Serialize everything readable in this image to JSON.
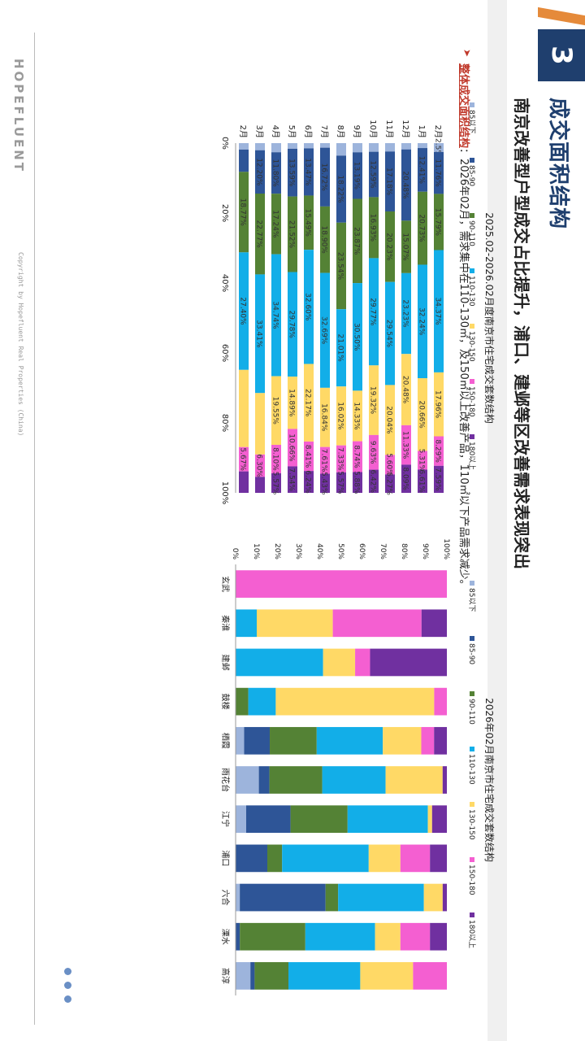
{
  "section": {
    "number": "3"
  },
  "header": {
    "title": "成交面积结构",
    "subtitle": "南京改善型户型成交占比提升，浦口、建邺等区改善需求表现突出"
  },
  "summary": {
    "lead": "整体成交面积结构",
    "text": "：2026年02月，需求集中在110-130㎡，及150㎡以上改善产品，110㎡以下产品需求减少。"
  },
  "footer": {
    "brand": "HOPEFLUENT",
    "copyright": "Copyright by Hopefluent Real Properties (China)"
  },
  "colors": {
    "s85": "#9db4dc",
    "s85_90": "#2e5597",
    "s90_110": "#548235",
    "s110_130": "#12aee8",
    "s130_150": "#ffd966",
    "s150_180": "#f45fd1",
    "s180": "#7030a0"
  },
  "chart_data": [
    {
      "type": "bar",
      "title": "2025.02-2026.02月度南京市住宅成交套数结构",
      "categories": [
        "2月",
        "3月",
        "4月",
        "5月",
        "6月",
        "7月",
        "8月",
        "9月",
        "10月",
        "11月",
        "12月",
        "1月",
        "2月"
      ],
      "legend": [
        "85以下",
        "85-90",
        "90-110",
        "110-130",
        "130-150",
        "150-180",
        "180以上"
      ],
      "y_ticks": [
        "0%",
        "20%",
        "40%",
        "60%",
        "80%",
        "100%"
      ],
      "series": [
        {
          "name": "85以下",
          "values": [
            1.5,
            2.0,
            2.6,
            1.6,
            1.5,
            1.3,
            3.4,
            2.6,
            2.4,
            2.4,
            1.8,
            1.4,
            2.5
          ]
        },
        {
          "name": "85-90",
          "values": [
            5.2,
            12.2,
            11.8,
            13.59,
            13.47,
            16.72,
            18.22,
            13.19,
            12.59,
            17.18,
            20.48,
            12.41,
            11.76
          ]
        },
        {
          "name": "90-110",
          "values": [
            18.77,
            22.77,
            17.24,
            21.52,
            15.49,
            18.9,
            23.54,
            23.87,
            16.93,
            20.23,
            15.07,
            20.73,
            15.79
          ]
        },
        {
          "name": "110-130",
          "values": [
            27.4,
            33.41,
            34.74,
            29.78,
            32.6,
            32.69,
            21.01,
            30.5,
            29.77,
            29.54,
            23.23,
            32.24,
            34.37
          ]
        },
        {
          "name": "130-150",
          "values": [
            18.0,
            17.3,
            19.55,
            14.89,
            22.17,
            16.84,
            16.02,
            14.33,
            19.32,
            20.04,
            20.48,
            20.66,
            17.96
          ]
        },
        {
          "name": "150-180",
          "values": [
            5.67,
            6.3,
            8.1,
            10.66,
            8.41,
            7.61,
            7.33,
            8.74,
            9.63,
            5.6,
            11.33,
            5.31,
            8.29
          ]
        },
        {
          "name": "180以上",
          "values": [
            5.0,
            4.5,
            5.57,
            7.54,
            6.24,
            5.43,
            5.57,
            5.88,
            6.42,
            5.27,
            8.09,
            6.61,
            7.59
          ]
        }
      ],
      "data_labels": [
        [
          "",
          "",
          "18.77%",
          "27.40%",
          "",
          "5.67%",
          ""
        ],
        [
          "",
          "12.20%",
          "22.77%",
          "33.41%",
          "",
          "6.30%",
          ""
        ],
        [
          "",
          "11.80%",
          "17.24%",
          "34.74%",
          "19.55%",
          "8.10%",
          "5.57%"
        ],
        [
          "",
          "13.59%",
          "21.52%",
          "29.78%",
          "14.89%",
          "10.66%",
          "7.54%"
        ],
        [
          "",
          "13.47%",
          "15.49%",
          "32.60%",
          "22.17%",
          "8.41%",
          "6.24%"
        ],
        [
          "",
          "16.72%",
          "18.90%",
          "32.69%",
          "16.84%",
          "7.61%",
          "5.43%"
        ],
        [
          "",
          "18.22%",
          "23.54%",
          "21.01%",
          "16.02%",
          "7.33%",
          "5.57%"
        ],
        [
          "",
          "13.19%",
          "23.87%",
          "30.50%",
          "14.33%",
          "8.74%",
          "5.88%"
        ],
        [
          "",
          "12.59%",
          "16.93%",
          "29.77%",
          "19.32%",
          "9.63%",
          "6.42%"
        ],
        [
          "",
          "17.18%",
          "20.23%",
          "29.54%",
          "20.04%",
          "5.60%",
          "5.27%"
        ],
        [
          "",
          "20.48%",
          "15.07%",
          "23.23%",
          "20.48%",
          "11.33%",
          "8.09%"
        ],
        [
          "",
          "12.41%",
          "20.73%",
          "32.24%",
          "20.66%",
          "5.31%",
          "6.61%"
        ],
        [
          "2.5%",
          "11.76%",
          "15.79%",
          "34.37%",
          "17.96%",
          "8.29%",
          "7.59%"
        ]
      ]
    },
    {
      "type": "bar",
      "title": "2026年02月南京市住宅成交套数结构",
      "categories": [
        "玄武",
        "秦淮",
        "建邺",
        "鼓楼",
        "栖霞",
        "雨花台",
        "江宁",
        "浦口",
        "六合",
        "溧水",
        "高淳"
      ],
      "legend": [
        "85以下",
        "85-90",
        "90-110",
        "110-130",
        "130-150",
        "150-180",
        "180以上"
      ],
      "y_ticks": [
        "0%",
        "10%",
        "20%",
        "30%",
        "40%",
        "50%",
        "60%",
        "70%",
        "80%",
        "90%",
        "100%"
      ],
      "series": [
        {
          "name": "85以下",
          "values": [
            0,
            0,
            0,
            0,
            4,
            11,
            5,
            0,
            2,
            0,
            7
          ]
        },
        {
          "name": "85-90",
          "values": [
            0,
            0,
            0,
            0,
            12,
            5,
            21,
            15,
            41,
            2,
            2
          ]
        },
        {
          "name": "90-110",
          "values": [
            0,
            0,
            0,
            6,
            22,
            25,
            27,
            7,
            6,
            31,
            16
          ]
        },
        {
          "name": "110-130",
          "values": [
            0,
            10,
            41,
            13,
            31,
            30,
            38,
            41,
            41,
            33,
            34
          ]
        },
        {
          "name": "130-150",
          "values": [
            0,
            36,
            15,
            75,
            18,
            27,
            2,
            15,
            9,
            12,
            25
          ]
        },
        {
          "name": "150-180",
          "values": [
            100,
            42,
            7,
            6,
            6,
            0,
            0,
            14,
            0,
            14,
            16
          ]
        },
        {
          "name": "180以上",
          "values": [
            0,
            12,
            36,
            0,
            6,
            2,
            7,
            8,
            2,
            8,
            0
          ]
        }
      ]
    }
  ]
}
